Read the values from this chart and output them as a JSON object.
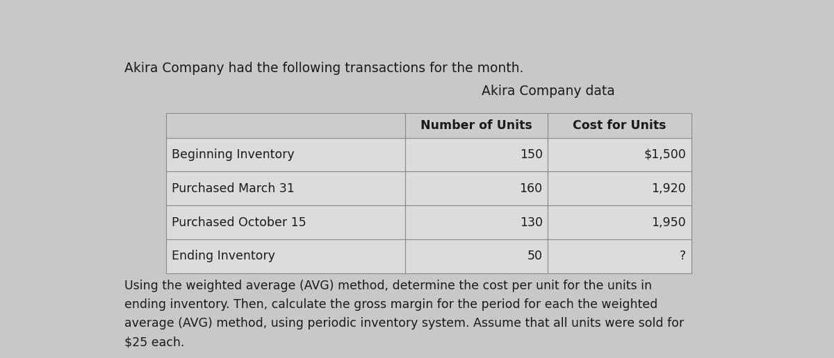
{
  "title_top": "Akira Company had the following transactions for the month.",
  "table_title": "Akira Company data",
  "col_headers": [
    "",
    "Number of Units",
    "Cost for Units"
  ],
  "rows": [
    [
      "Beginning Inventory",
      "150",
      "$1,500"
    ],
    [
      "Purchased March 31",
      "160",
      "1,920"
    ],
    [
      "Purchased October 15",
      "130",
      "1,950"
    ],
    [
      "Ending Inventory",
      "50",
      "?"
    ]
  ],
  "footer_text": "Using the weighted average (AVG) method, determine the cost per unit for the units in\nending inventory. Then, calculate the gross margin for the period for each the weighted\naverage (AVG) method, using periodic inventory system. Assume that all units were sold for\n$25 each.",
  "bg_color": "#c8c8c8",
  "cell_bg": "#dcdcdc",
  "header_bg": "#cccccc",
  "border_color": "#888888",
  "text_color": "#1a1a1a",
  "font_size_title": 13.5,
  "font_size_table_title": 13.5,
  "font_size_header": 12.5,
  "font_size_cell": 12.5,
  "font_size_footer": 12.5
}
